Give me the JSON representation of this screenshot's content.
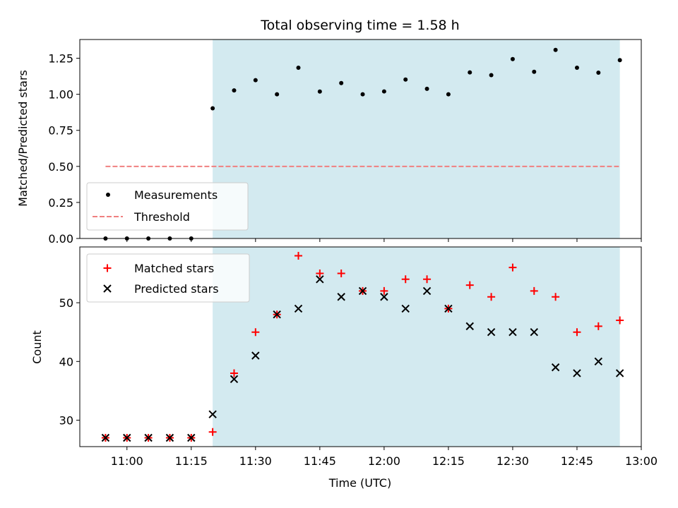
{
  "title": "Total observing time = 1.58 h",
  "colors": {
    "shade": "#d3eaf0",
    "threshold": "#f08080",
    "matched": "#ff0000",
    "predicted": "#000000",
    "measurement": "#000000"
  },
  "chart_data": [
    {
      "type": "scatter",
      "ylabel": "Matched/Predicted stars",
      "ylim": [
        0,
        1.38
      ],
      "yticks": [
        0.0,
        0.25,
        0.5,
        0.75,
        1.0,
        1.25
      ],
      "ytick_labels": [
        "0.00",
        "0.25",
        "0.50",
        "0.75",
        "1.00",
        "1.25"
      ],
      "xlim": [
        "10:49",
        "13:00"
      ],
      "shaded_span": [
        "11:20",
        "12:55"
      ],
      "legend_position": "lower-left",
      "series": [
        {
          "name": "Measurements",
          "marker": "dot",
          "points": [
            [
              "10:55",
              0.0
            ],
            [
              "11:00",
              0.0
            ],
            [
              "11:05",
              0.0
            ],
            [
              "11:10",
              0.0
            ],
            [
              "11:15",
              0.0
            ],
            [
              "11:20",
              0.903
            ],
            [
              "11:25",
              1.027
            ],
            [
              "11:30",
              1.098
            ],
            [
              "11:35",
              1.0
            ],
            [
              "11:40",
              1.184
            ],
            [
              "11:45",
              1.019
            ],
            [
              "11:50",
              1.078
            ],
            [
              "11:55",
              1.0
            ],
            [
              "12:00",
              1.02
            ],
            [
              "12:05",
              1.102
            ],
            [
              "12:10",
              1.038
            ],
            [
              "12:15",
              1.0
            ],
            [
              "12:20",
              1.152
            ],
            [
              "12:25",
              1.133
            ],
            [
              "12:30",
              1.244
            ],
            [
              "12:35",
              1.156
            ],
            [
              "12:40",
              1.308
            ],
            [
              "12:45",
              1.184
            ],
            [
              "12:50",
              1.15
            ],
            [
              "12:55",
              1.237
            ]
          ]
        },
        {
          "name": "Threshold",
          "marker": "dashed-line",
          "points": [
            [
              "10:55",
              0.5
            ],
            [
              "12:55",
              0.5
            ]
          ]
        }
      ]
    },
    {
      "type": "scatter",
      "title": "",
      "xlabel": "Time (UTC)",
      "ylabel": "Count",
      "ylim": [
        25.5,
        59.5
      ],
      "yticks": [
        30,
        40,
        50
      ],
      "xlim": [
        "10:49",
        "13:00"
      ],
      "xticks": [
        "11:00",
        "11:15",
        "11:30",
        "11:45",
        "12:00",
        "12:15",
        "12:30",
        "12:45",
        "13:00"
      ],
      "shaded_span": [
        "11:20",
        "12:55"
      ],
      "legend_position": "upper-left",
      "x": [
        "10:55",
        "11:00",
        "11:05",
        "11:10",
        "11:15",
        "11:20",
        "11:25",
        "11:30",
        "11:35",
        "11:40",
        "11:45",
        "11:50",
        "11:55",
        "12:00",
        "12:05",
        "12:10",
        "12:15",
        "12:20",
        "12:25",
        "12:30",
        "12:35",
        "12:40",
        "12:45",
        "12:50",
        "12:55"
      ],
      "series": [
        {
          "name": "Matched stars",
          "marker": "plus",
          "values": [
            27,
            27,
            27,
            27,
            27,
            28,
            38,
            45,
            48,
            58,
            55,
            55,
            52,
            52,
            54,
            54,
            49,
            53,
            51,
            56,
            52,
            51,
            45,
            46,
            47
          ]
        },
        {
          "name": "Predicted stars",
          "marker": "x",
          "values": [
            27,
            27,
            27,
            27,
            27,
            31,
            37,
            41,
            48,
            49,
            54,
            51,
            52,
            51,
            49,
            52,
            49,
            46,
            45,
            45,
            45,
            39,
            38,
            40,
            38
          ]
        }
      ]
    }
  ]
}
